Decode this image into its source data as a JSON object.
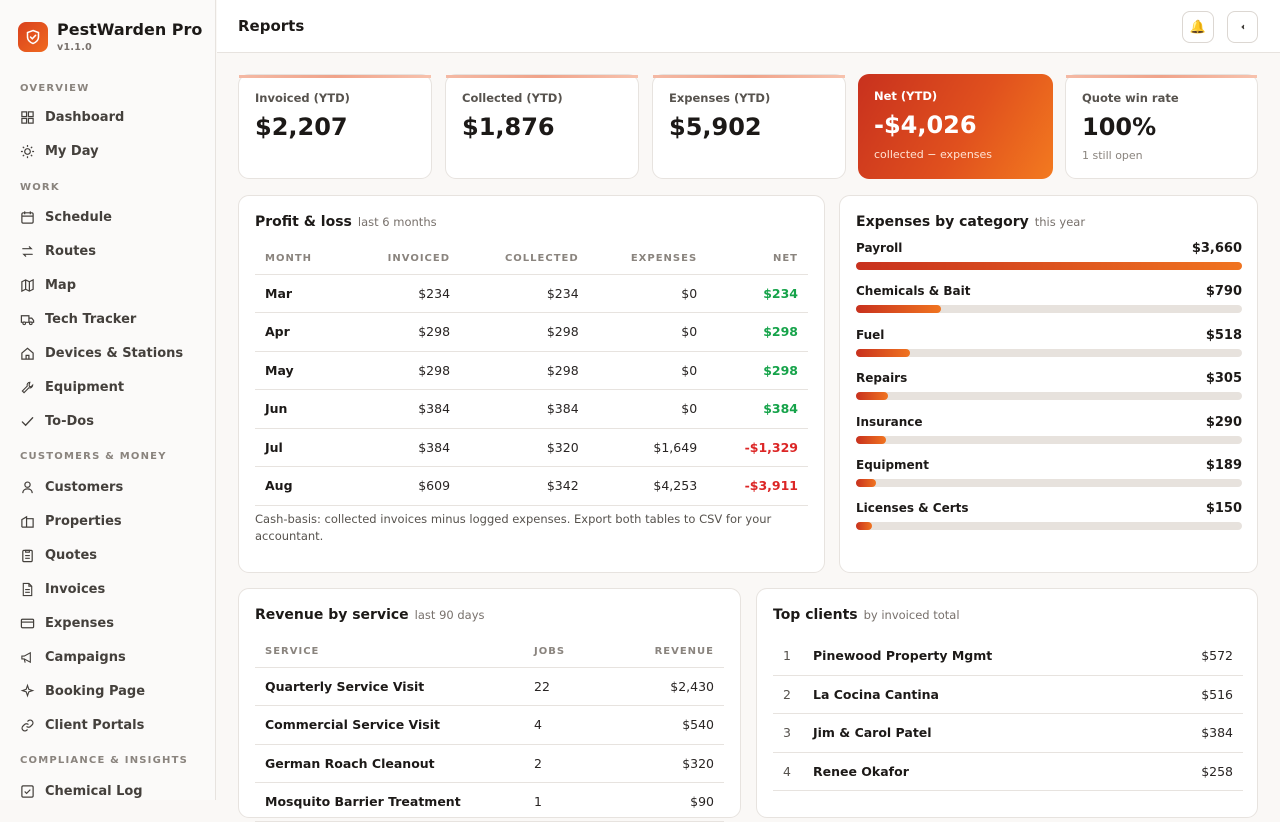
{
  "app": {
    "name": "PestWarden Pro",
    "version": "v1.1.0"
  },
  "sidebar": {
    "sections": [
      {
        "label": "OVERVIEW",
        "items": [
          {
            "label": "Dashboard",
            "icon": "dashboard-icon"
          },
          {
            "label": "My Day",
            "icon": "sun-icon"
          }
        ]
      },
      {
        "label": "WORK",
        "items": [
          {
            "label": "Schedule",
            "icon": "calendar-icon"
          },
          {
            "label": "Routes",
            "icon": "route-icon"
          },
          {
            "label": "Map",
            "icon": "map-icon"
          },
          {
            "label": "Tech Tracker",
            "icon": "truck-icon"
          },
          {
            "label": "Devices & Stations",
            "icon": "home-icon"
          },
          {
            "label": "Equipment",
            "icon": "wrench-icon"
          },
          {
            "label": "To-Dos",
            "icon": "check-icon"
          }
        ]
      },
      {
        "label": "CUSTOMERS & MONEY",
        "items": [
          {
            "label": "Customers",
            "icon": "user-icon"
          },
          {
            "label": "Properties",
            "icon": "building-icon"
          },
          {
            "label": "Quotes",
            "icon": "clipboard-icon"
          },
          {
            "label": "Invoices",
            "icon": "document-icon"
          },
          {
            "label": "Expenses",
            "icon": "card-icon"
          },
          {
            "label": "Campaigns",
            "icon": "megaphone-icon"
          },
          {
            "label": "Booking Page",
            "icon": "sparkle-icon"
          },
          {
            "label": "Client Portals",
            "icon": "link-icon"
          }
        ]
      },
      {
        "label": "COMPLIANCE & INSIGHTS",
        "items": [
          {
            "label": "Chemical Log",
            "icon": "checkbox-icon"
          }
        ]
      }
    ]
  },
  "header": {
    "title": "Reports",
    "bell_icon": "bell-icon",
    "collapse_icon": "chevron-left-icon"
  },
  "stats": [
    {
      "label": "Invoiced (YTD)",
      "value": "$2,207",
      "sub": ""
    },
    {
      "label": "Collected (YTD)",
      "value": "$1,876",
      "sub": ""
    },
    {
      "label": "Expenses (YTD)",
      "value": "$5,902",
      "sub": ""
    },
    {
      "label": "Net (YTD)",
      "value": "-$4,026",
      "sub": "collected − expenses"
    },
    {
      "label": "Quote win rate",
      "value": "100%",
      "sub": "1 still open"
    }
  ],
  "pnl": {
    "title": "Profit & loss",
    "subtitle": "last 6 months",
    "columns": [
      "MONTH",
      "INVOICED",
      "COLLECTED",
      "EXPENSES",
      "NET"
    ],
    "rows": [
      {
        "month": "Mar",
        "invoiced": "$234",
        "collected": "$234",
        "expenses": "$0",
        "net": "$234",
        "net_sign": "pos"
      },
      {
        "month": "Apr",
        "invoiced": "$298",
        "collected": "$298",
        "expenses": "$0",
        "net": "$298",
        "net_sign": "pos"
      },
      {
        "month": "May",
        "invoiced": "$298",
        "collected": "$298",
        "expenses": "$0",
        "net": "$298",
        "net_sign": "pos"
      },
      {
        "month": "Jun",
        "invoiced": "$384",
        "collected": "$384",
        "expenses": "$0",
        "net": "$384",
        "net_sign": "pos"
      },
      {
        "month": "Jul",
        "invoiced": "$384",
        "collected": "$320",
        "expenses": "$1,649",
        "net": "-$1,329",
        "net_sign": "neg"
      },
      {
        "month": "Aug",
        "invoiced": "$609",
        "collected": "$342",
        "expenses": "$4,253",
        "net": "-$3,911",
        "net_sign": "neg"
      }
    ],
    "note": "Cash-basis: collected invoices minus logged expenses. Export both tables to CSV for your accountant."
  },
  "expenses_by_category": {
    "title": "Expenses by category",
    "subtitle": "this year",
    "items": [
      {
        "label": "Payroll",
        "amount": "$3,660",
        "share": 1.0
      },
      {
        "label": "Chemicals & Bait",
        "amount": "$790",
        "share": 0.22
      },
      {
        "label": "Fuel",
        "amount": "$518",
        "share": 0.14
      },
      {
        "label": "Repairs",
        "amount": "$305",
        "share": 0.083
      },
      {
        "label": "Insurance",
        "amount": "$290",
        "share": 0.079
      },
      {
        "label": "Equipment",
        "amount": "$189",
        "share": 0.052
      },
      {
        "label": "Licenses & Certs",
        "amount": "$150",
        "share": 0.041
      }
    ]
  },
  "revenue_by_service": {
    "title": "Revenue by service",
    "subtitle": "last 90 days",
    "columns": [
      "SERVICE",
      "JOBS",
      "REVENUE"
    ],
    "rows": [
      {
        "service": "Quarterly Service Visit",
        "jobs": "22",
        "revenue": "$2,430"
      },
      {
        "service": "Commercial Service Visit",
        "jobs": "4",
        "revenue": "$540"
      },
      {
        "service": "German Roach Cleanout",
        "jobs": "2",
        "revenue": "$320"
      },
      {
        "service": "Mosquito Barrier Treatment",
        "jobs": "1",
        "revenue": "$90"
      }
    ]
  },
  "top_clients": {
    "title": "Top clients",
    "subtitle": "by invoiced total",
    "rows": [
      {
        "rank": "1",
        "name": "Pinewood Property Mgmt",
        "amount": "$572"
      },
      {
        "rank": "2",
        "name": "La Cocina Cantina",
        "amount": "$516"
      },
      {
        "rank": "3",
        "name": "Jim & Carol Patel",
        "amount": "$384"
      },
      {
        "rank": "4",
        "name": "Renee Okafor",
        "amount": "$258"
      }
    ]
  }
}
